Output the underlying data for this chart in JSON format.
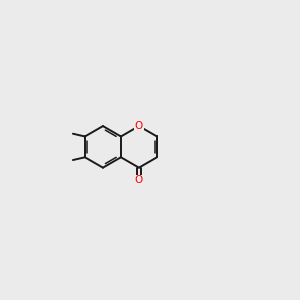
{
  "background_color": "#ebebeb",
  "bond_color": "#1a1a1a",
  "oxygen_color": "#ff0000",
  "nitrogen_color": "#0000ff",
  "sulfur_color": "#cccc00",
  "lw": 1.4,
  "lw_inner": 1.1
}
